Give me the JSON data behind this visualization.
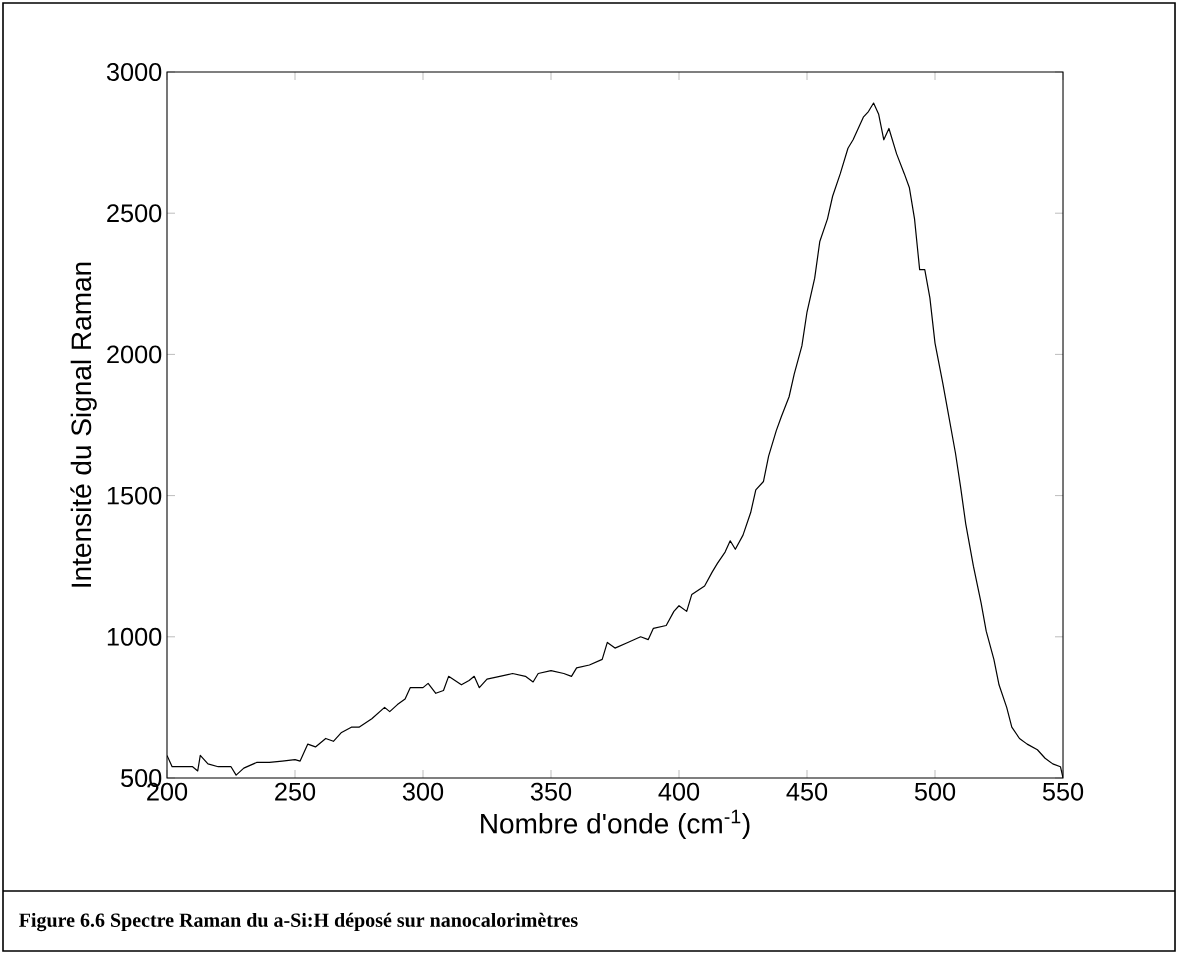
{
  "chart_data": {
    "type": "line",
    "xlabel": "Nombre d'onde (cm$^{-1}$)",
    "ylabel": "Intensité du Signal Raman",
    "annotations": [
      "Figure 6.6 Spectre Raman du a-Si:H déposé sur nanocalorimètres"
    ],
    "color": "#000000",
    "x": [
      200,
      202,
      210,
      212,
      213,
      216,
      220,
      225,
      227,
      230,
      235,
      240,
      245,
      250,
      252,
      255,
      258,
      262,
      265,
      268,
      272,
      275,
      280,
      285,
      287,
      290,
      293,
      295,
      300,
      302,
      305,
      308,
      310,
      315,
      318,
      320,
      322,
      325,
      330,
      335,
      340,
      343,
      345,
      350,
      355,
      358,
      360,
      365,
      370,
      372,
      375,
      380,
      385,
      388,
      390,
      395,
      398,
      400,
      403,
      405,
      410,
      413,
      415,
      418,
      420,
      422,
      425,
      428,
      430,
      433,
      435,
      438,
      440,
      443,
      445,
      448,
      450,
      453,
      455,
      458,
      460,
      463,
      466,
      468,
      470,
      472,
      474,
      476,
      478,
      480,
      482,
      485,
      488,
      490,
      492,
      494,
      496,
      498,
      500,
      503,
      505,
      508,
      510,
      512,
      515,
      518,
      520,
      523,
      525,
      528,
      530,
      533,
      536,
      540,
      543,
      546,
      549,
      550
    ],
    "values": [
      580,
      540,
      540,
      525,
      580,
      550,
      540,
      540,
      510,
      535,
      555,
      555,
      560,
      565,
      560,
      620,
      610,
      640,
      630,
      660,
      680,
      680,
      710,
      750,
      735,
      760,
      780,
      820,
      820,
      835,
      800,
      810,
      860,
      830,
      845,
      860,
      820,
      850,
      860,
      870,
      860,
      840,
      870,
      880,
      870,
      860,
      890,
      900,
      920,
      980,
      960,
      980,
      1000,
      990,
      1030,
      1040,
      1090,
      1110,
      1090,
      1150,
      1180,
      1230,
      1260,
      1300,
      1340,
      1310,
      1360,
      1440,
      1520,
      1550,
      1640,
      1730,
      1780,
      1850,
      1930,
      2030,
      2150,
      2270,
      2400,
      2480,
      2560,
      2640,
      2730,
      2760,
      2800,
      2840,
      2860,
      2890,
      2850,
      2760,
      2800,
      2710,
      2640,
      2590,
      2480,
      2300,
      2300,
      2200,
      2040,
      1900,
      1800,
      1650,
      1530,
      1400,
      1250,
      1120,
      1020,
      920,
      830,
      750,
      680,
      640,
      620,
      600,
      570,
      550,
      540,
      500
    ],
    "xlim": [
      200,
      550
    ],
    "ylim": [
      500,
      3000
    ],
    "xticks": [
      200,
      250,
      300,
      350,
      400,
      450,
      500,
      550
    ],
    "yticks": [
      500,
      1000,
      1500,
      2000,
      2500,
      3000
    ]
  }
}
